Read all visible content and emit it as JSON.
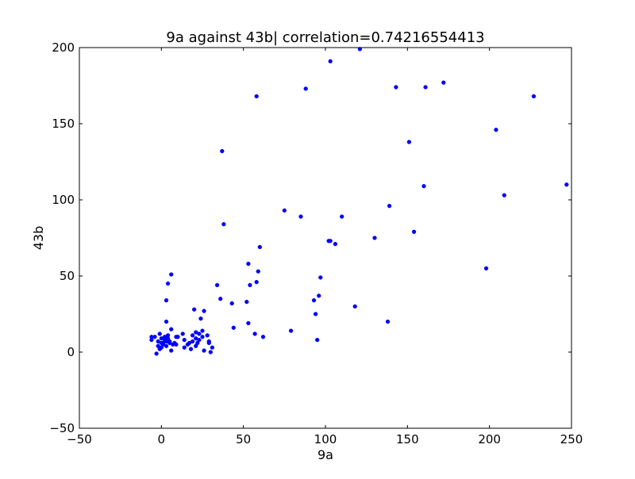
{
  "chart_data": {
    "type": "scatter",
    "title": "9a against 43b| correlation=0.74216554413",
    "xlabel": "9a",
    "ylabel": "43b",
    "xlim": [
      -50,
      250
    ],
    "ylim": [
      -50,
      200
    ],
    "xticks": [
      -50,
      0,
      50,
      100,
      150,
      200,
      250
    ],
    "yticks": [
      -50,
      0,
      50,
      100,
      150,
      200
    ],
    "xtick_labels": [
      "−50",
      "0",
      "50",
      "100",
      "150",
      "200",
      "250"
    ],
    "ytick_labels": [
      "−50",
      "0",
      "50",
      "100",
      "150",
      "200"
    ],
    "grid": false,
    "legend": "none",
    "marker_color": "#0000ff",
    "series": [
      {
        "points": [
          [
            -6,
            8
          ],
          [
            -6,
            10
          ],
          [
            -4,
            10
          ],
          [
            -3,
            -1
          ],
          [
            -2,
            4
          ],
          [
            -2,
            7
          ],
          [
            -1,
            12
          ],
          [
            -1,
            2
          ],
          [
            0,
            3
          ],
          [
            0,
            6
          ],
          [
            0,
            9
          ],
          [
            1,
            6
          ],
          [
            1,
            5
          ],
          [
            2,
            8
          ],
          [
            2,
            10
          ],
          [
            3,
            7
          ],
          [
            3,
            4
          ],
          [
            4,
            11
          ],
          [
            4,
            9
          ],
          [
            3,
            20
          ],
          [
            3,
            34
          ],
          [
            4,
            45
          ],
          [
            6,
            51
          ],
          [
            5,
            7
          ],
          [
            5,
            6
          ],
          [
            6,
            1
          ],
          [
            6,
            15
          ],
          [
            7,
            5
          ],
          [
            8,
            6
          ],
          [
            9,
            5
          ],
          [
            9,
            10
          ],
          [
            10,
            10
          ],
          [
            13,
            12
          ],
          [
            14,
            3
          ],
          [
            14,
            8
          ],
          [
            16,
            5
          ],
          [
            17,
            6
          ],
          [
            18,
            2
          ],
          [
            19,
            7
          ],
          [
            19,
            11
          ],
          [
            20,
            28
          ],
          [
            21,
            4
          ],
          [
            21,
            9
          ],
          [
            21,
            13
          ],
          [
            22,
            6
          ],
          [
            23,
            12
          ],
          [
            23,
            8
          ],
          [
            24,
            22
          ],
          [
            25,
            14
          ],
          [
            25,
            10
          ],
          [
            26,
            27
          ],
          [
            26,
            1
          ],
          [
            28,
            11
          ],
          [
            29,
            7
          ],
          [
            29,
            6
          ],
          [
            30,
            0
          ],
          [
            31,
            3
          ],
          [
            34,
            44
          ],
          [
            36,
            35
          ],
          [
            37,
            132
          ],
          [
            38,
            84
          ],
          [
            43,
            32
          ],
          [
            44,
            16
          ],
          [
            52,
            33
          ],
          [
            53,
            19
          ],
          [
            53,
            58
          ],
          [
            54,
            44
          ],
          [
            57,
            12
          ],
          [
            58,
            46
          ],
          [
            59,
            53
          ],
          [
            60,
            69
          ],
          [
            58,
            168
          ],
          [
            62,
            10
          ],
          [
            75,
            93
          ],
          [
            79,
            14
          ],
          [
            85,
            89
          ],
          [
            88,
            173
          ],
          [
            93,
            34
          ],
          [
            94,
            25
          ],
          [
            95,
            8
          ],
          [
            96,
            37
          ],
          [
            97,
            49
          ],
          [
            102,
            73
          ],
          [
            103,
            73
          ],
          [
            106,
            71
          ],
          [
            103,
            191
          ],
          [
            110,
            89
          ],
          [
            118,
            30
          ],
          [
            121,
            199
          ],
          [
            130,
            75
          ],
          [
            138,
            20
          ],
          [
            139,
            96
          ],
          [
            143,
            174
          ],
          [
            151,
            138
          ],
          [
            154,
            79
          ],
          [
            160,
            109
          ],
          [
            161,
            174
          ],
          [
            172,
            177
          ],
          [
            198,
            55
          ],
          [
            204,
            146
          ],
          [
            209,
            103
          ],
          [
            227,
            168
          ],
          [
            247,
            110
          ]
        ]
      }
    ]
  }
}
